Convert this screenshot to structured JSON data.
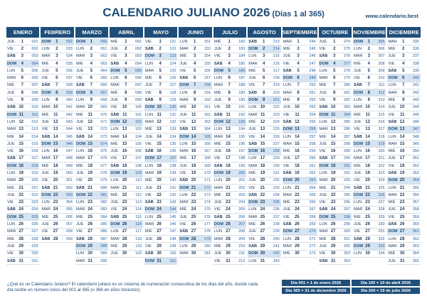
{
  "header": {
    "title": "CALENDARIO JULIANO 2026",
    "subtitle": "(Días 1 al 365)",
    "website": "www.calendario.best"
  },
  "months": [
    {
      "name": "ENERO",
      "days": 31,
      "start_weekday": 3,
      "start_julian": 1
    },
    {
      "name": "FEBRERO",
      "days": 28,
      "start_weekday": 6,
      "start_julian": 32
    },
    {
      "name": "MARZO",
      "days": 31,
      "start_weekday": 6,
      "start_julian": 60
    },
    {
      "name": "ABRIL",
      "days": 30,
      "start_weekday": 2,
      "start_julian": 91
    },
    {
      "name": "MAYO",
      "days": 31,
      "start_weekday": 4,
      "start_julian": 121
    },
    {
      "name": "JUNIO",
      "days": 30,
      "start_weekday": 0,
      "start_julian": 152
    },
    {
      "name": "JULIO",
      "days": 31,
      "start_weekday": 2,
      "start_julian": 182
    },
    {
      "name": "AGOSTO",
      "days": 31,
      "start_weekday": 5,
      "start_julian": 213
    },
    {
      "name": "SEPTIEMBRE",
      "days": 30,
      "start_weekday": 1,
      "start_julian": 244
    },
    {
      "name": "OCTUBRE",
      "days": 31,
      "start_weekday": 3,
      "start_julian": 274
    },
    {
      "name": "NOVIEMBRE",
      "days": 30,
      "start_weekday": 6,
      "start_julian": 305
    },
    {
      "name": "DICIEMBRE",
      "days": 31,
      "start_weekday": 1,
      "start_julian": 335
    }
  ],
  "weekday_labels": [
    "LUN",
    "MAR",
    "MIÉ",
    "JUE",
    "VIE",
    "SÁB",
    "DOM"
  ],
  "footer": {
    "note_line1": "¿Qué es un Calendario Juliano? El calendario juliano es un sistema de numeración consecutiva de los días del año, donde cada",
    "note_line2": "día recibe un número único del 001 al 365 (o 366 en años bisiestos)",
    "box1": "Día 001 = 1 de enero 2026",
    "box2": "Día 100 = 10 de abril 2026",
    "box3": "Día 365 = 31 de diciembre 2026",
    "box4": "Día 200 = 19 de julio 2026"
  }
}
